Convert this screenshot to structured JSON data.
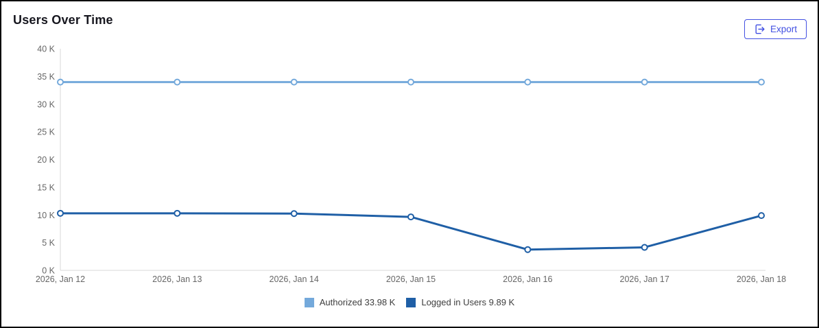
{
  "header": {
    "title": "Users Over Time",
    "export_label": "Export"
  },
  "colors": {
    "accent_blue": "#4250e2",
    "axis_line": "#d9d9d9",
    "tick_text": "#666666",
    "title_text": "#17171f",
    "legend_text": "#3d3d3d",
    "frame_border": "#000000",
    "background": "#ffffff"
  },
  "chart_data": {
    "type": "line",
    "title": "Users Over Time",
    "x": [
      "2026, Jan 12",
      "2026, Jan 13",
      "2026, Jan 14",
      "2026, Jan 15",
      "2026, Jan 16",
      "2026, Jan 17",
      "2026, Jan 18"
    ],
    "series": [
      {
        "name": "Authorized",
        "legend_label": "Authorized 33.98 K",
        "color": "#74a9db",
        "latest_value": "33.98 K",
        "values": [
          33.98,
          33.98,
          33.98,
          33.98,
          33.98,
          33.98,
          33.98
        ]
      },
      {
        "name": "Logged in Users",
        "legend_label": "Logged in Users 9.89 K",
        "color": "#1f5fa6",
        "latest_value": "9.89 K",
        "values": [
          10.3,
          10.3,
          10.25,
          9.65,
          3.75,
          4.15,
          9.89
        ]
      }
    ],
    "ylim": [
      0,
      40
    ],
    "ytick_step": 5,
    "yticks": [
      "0 K",
      "5 K",
      "10 K",
      "15 K",
      "20 K",
      "25 K",
      "30 K",
      "35 K",
      "40 K"
    ],
    "grid": false,
    "marker": "circle-open",
    "legend_position": "bottom"
  }
}
